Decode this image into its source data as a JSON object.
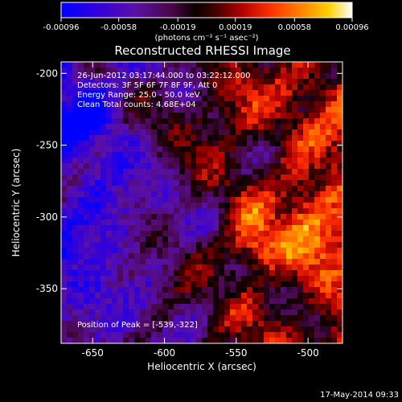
{
  "chart_data": {
    "type": "heatmap",
    "title": "Reconstructed RHESSI Image",
    "xlabel": "Heliocentric X (arcsec)",
    "ylabel": "Heliocentric Y (arcsec)",
    "xlim": [
      -672,
      -476
    ],
    "ylim": [
      -388,
      -192
    ],
    "x_ticks": [
      {
        "value": -650,
        "label": "-650"
      },
      {
        "value": -600,
        "label": "-600"
      },
      {
        "value": -550,
        "label": "-550"
      },
      {
        "value": -500,
        "label": "-500"
      }
    ],
    "y_ticks": [
      {
        "value": -200,
        "label": "-200"
      },
      {
        "value": -250,
        "label": "-250"
      },
      {
        "value": -300,
        "label": "-300"
      },
      {
        "value": -350,
        "label": "-350"
      }
    ],
    "colorbar": {
      "range": [
        -0.00096,
        0.00096
      ],
      "units_label": "(photons cm⁻² s⁻¹ asec⁻²)",
      "ticks": [
        {
          "value": -0.00096,
          "label": "-0.00096"
        },
        {
          "value": -0.00058,
          "label": "-0.00058"
        },
        {
          "value": -0.00019,
          "label": "-0.00019"
        },
        {
          "value": 0.00019,
          "label": "0.00019"
        },
        {
          "value": 0.00058,
          "label": "0.00058"
        },
        {
          "value": 0.00096,
          "label": "0.00096"
        }
      ]
    },
    "annotations": [
      "26-Jun-2012 03:17:44.000 to 03:22:12.000",
      "Detectors: 3F 5F 6F 7F 8F 9F, Att 0",
      "Energy Range: 25.0 - 50.0 keV",
      "Clean    Total counts: 4.68E+04"
    ],
    "peak_label": "Position of Peak = [-539,-322]",
    "peak_position": [
      -539,
      -322
    ]
  },
  "footer": {
    "timestamp": "17-May-2014 09:33"
  },
  "colors": {
    "background": "#000000",
    "text": "#ffffff",
    "low_end": "#0000ff",
    "high_end": "#ffffff"
  }
}
